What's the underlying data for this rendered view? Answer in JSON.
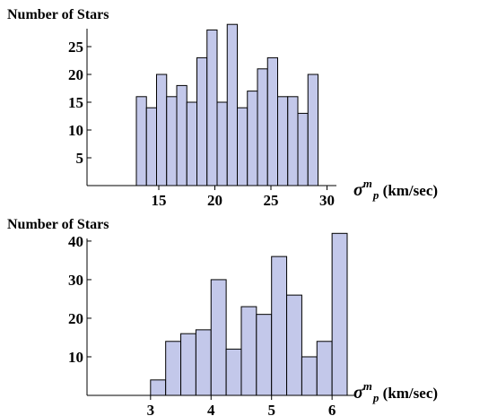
{
  "chart_data": [
    {
      "type": "bar",
      "ylabel": "Number of Stars",
      "xlabel": {
        "symbol": "σ",
        "sup": "m",
        "sub": "p",
        "unit": " (km/sec)"
      },
      "xlim": [
        8.6,
        31.8
      ],
      "ylim": [
        0,
        30
      ],
      "x_ticks": [
        15,
        20,
        25,
        30
      ],
      "y_ticks": [
        5,
        10,
        15,
        20,
        25
      ],
      "bin_start": 13,
      "bin_width": 0.9,
      "values": [
        16,
        14,
        20,
        16,
        18,
        15,
        23,
        28,
        15,
        29,
        14,
        17,
        21,
        23,
        16,
        16,
        13,
        20
      ],
      "bar_fill": "#c3c8ea",
      "grid": false
    },
    {
      "type": "bar",
      "ylabel": "Number of Stars",
      "xlabel": {
        "symbol": "σ",
        "sup": "m",
        "sub": "p",
        "unit": " (km/sec)"
      },
      "xlim": [
        1.95,
        6.25
      ],
      "ylim": [
        0,
        43
      ],
      "x_ticks": [
        3,
        4,
        5,
        6
      ],
      "y_ticks": [
        10,
        20,
        30,
        40
      ],
      "bin_start": 3.0,
      "bin_width": 0.25,
      "values": [
        4,
        14,
        16,
        17,
        30,
        12,
        23,
        21,
        36,
        26,
        10,
        14,
        42
      ],
      "bar_fill": "#c3c8ea",
      "grid": false
    }
  ]
}
